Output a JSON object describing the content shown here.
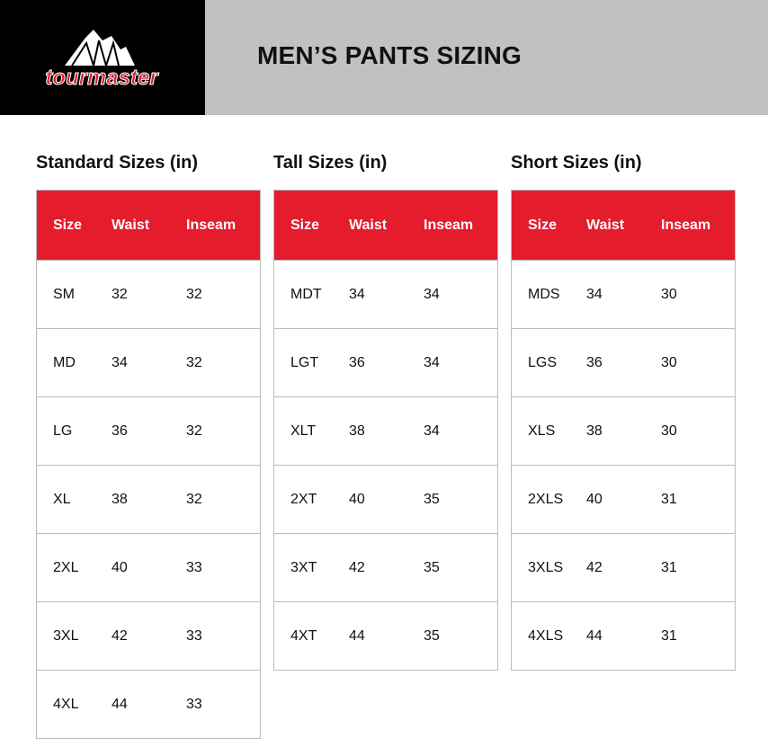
{
  "header": {
    "brand": "tourmaster",
    "title": "MEN’S PANTS SIZING"
  },
  "columns": [
    "Size",
    "Waist",
    "Inseam"
  ],
  "tables": [
    {
      "title": "Standard Sizes (in)",
      "rows": [
        [
          "SM",
          "32",
          "32"
        ],
        [
          "MD",
          "34",
          "32"
        ],
        [
          "LG",
          "36",
          "32"
        ],
        [
          "XL",
          "38",
          "32"
        ],
        [
          "2XL",
          "40",
          "33"
        ],
        [
          "3XL",
          "42",
          "33"
        ],
        [
          "4XL",
          "44",
          "33"
        ]
      ]
    },
    {
      "title": "Tall Sizes (in)",
      "rows": [
        [
          "MDT",
          "34",
          "34"
        ],
        [
          "LGT",
          "36",
          "34"
        ],
        [
          "XLT",
          "38",
          "34"
        ],
        [
          "2XT",
          "40",
          "35"
        ],
        [
          "3XT",
          "42",
          "35"
        ],
        [
          "4XT",
          "44",
          "35"
        ]
      ]
    },
    {
      "title": "Short Sizes (in)",
      "rows": [
        [
          "MDS",
          "34",
          "30"
        ],
        [
          "LGS",
          "36",
          "30"
        ],
        [
          "XLS",
          "38",
          "30"
        ],
        [
          "2XLS",
          "40",
          "31"
        ],
        [
          "3XLS",
          "42",
          "31"
        ],
        [
          "4XLS",
          "44",
          "31"
        ]
      ]
    }
  ],
  "colors": {
    "accent": "#e41c2c",
    "header_bg": "#c1c1c3",
    "logo_bg": "#000000"
  }
}
